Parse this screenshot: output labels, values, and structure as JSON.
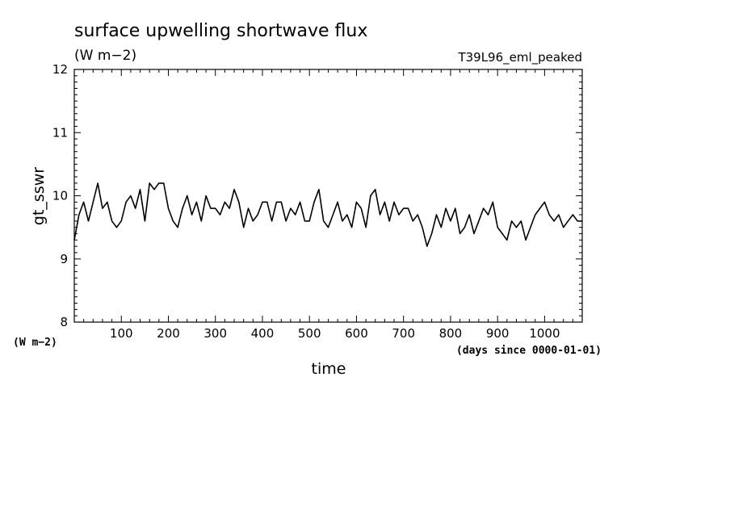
{
  "chart_data": {
    "type": "line",
    "title": "surface upwelling shortwave flux",
    "units": "(W m−2)",
    "experiment": "T39L96_eml_peaked",
    "xlabel": "time",
    "x_units": "(days since 0000-01-01)",
    "ylabel": "gt_sswr",
    "y_units": "(W m−2)",
    "xlim": [
      0,
      1080
    ],
    "ylim": [
      8,
      12
    ],
    "x_ticks": [
      100,
      200,
      300,
      400,
      500,
      600,
      700,
      800,
      900,
      1000
    ],
    "y_ticks": [
      8,
      9,
      10,
      11,
      12
    ],
    "grid": false,
    "series": [
      {
        "color": "#000000",
        "x": [
          0,
          10,
          20,
          30,
          40,
          50,
          60,
          70,
          80,
          90,
          100,
          110,
          120,
          130,
          140,
          150,
          160,
          170,
          180,
          190,
          200,
          210,
          220,
          230,
          240,
          250,
          260,
          270,
          280,
          290,
          300,
          310,
          320,
          330,
          340,
          350,
          360,
          370,
          380,
          390,
          400,
          410,
          420,
          430,
          440,
          450,
          460,
          470,
          480,
          490,
          500,
          510,
          520,
          530,
          540,
          550,
          560,
          570,
          580,
          590,
          600,
          610,
          620,
          630,
          640,
          650,
          660,
          670,
          680,
          690,
          700,
          710,
          720,
          730,
          740,
          750,
          760,
          770,
          780,
          790,
          800,
          810,
          820,
          830,
          840,
          850,
          860,
          870,
          880,
          890,
          900,
          910,
          920,
          930,
          940,
          950,
          960,
          970,
          980,
          990,
          1000,
          1010,
          1020,
          1030,
          1040,
          1050,
          1060,
          1070,
          1080
        ],
        "y": [
          9.3,
          9.7,
          9.9,
          9.6,
          9.9,
          10.2,
          9.8,
          9.9,
          9.6,
          9.5,
          9.6,
          9.9,
          10.0,
          9.8,
          10.1,
          9.6,
          10.2,
          10.1,
          10.2,
          10.2,
          9.8,
          9.6,
          9.5,
          9.8,
          10.0,
          9.7,
          9.9,
          9.6,
          10.0,
          9.8,
          9.8,
          9.7,
          9.9,
          9.8,
          10.1,
          9.9,
          9.5,
          9.8,
          9.6,
          9.7,
          9.9,
          9.9,
          9.6,
          9.9,
          9.9,
          9.6,
          9.8,
          9.7,
          9.9,
          9.6,
          9.6,
          9.9,
          10.1,
          9.6,
          9.5,
          9.7,
          9.9,
          9.6,
          9.7,
          9.5,
          9.9,
          9.8,
          9.5,
          10.0,
          10.1,
          9.7,
          9.9,
          9.6,
          9.9,
          9.7,
          9.8,
          9.8,
          9.6,
          9.7,
          9.5,
          9.2,
          9.4,
          9.7,
          9.5,
          9.8,
          9.6,
          9.8,
          9.4,
          9.5,
          9.7,
          9.4,
          9.6,
          9.8,
          9.7,
          9.9,
          9.5,
          9.4,
          9.3,
          9.6,
          9.5,
          9.6,
          9.3,
          9.5,
          9.7,
          9.8,
          9.9,
          9.7,
          9.6,
          9.7,
          9.5,
          9.6,
          9.7,
          9.6,
          9.6
        ]
      }
    ]
  }
}
